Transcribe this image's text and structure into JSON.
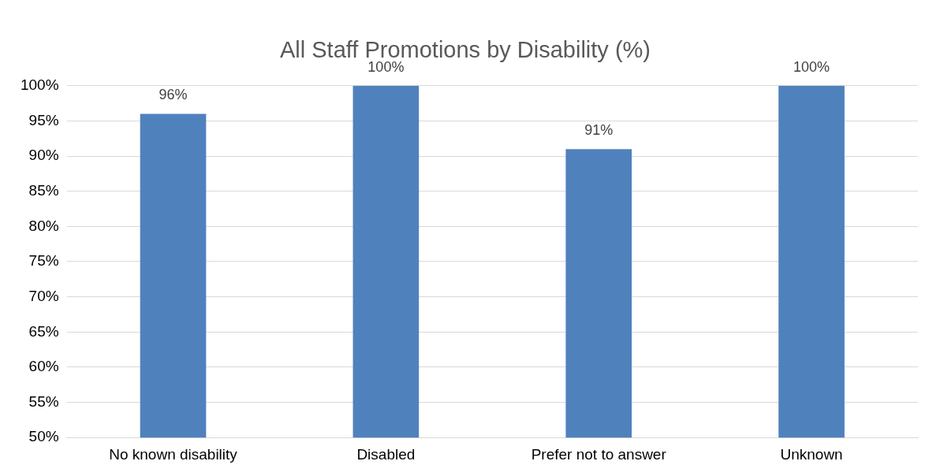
{
  "chart_data": {
    "type": "bar",
    "title": "All Staff Promotions by Disability (%)",
    "categories": [
      "No known disability",
      "Disabled",
      "Prefer not to answer",
      "Unknown"
    ],
    "values": [
      96,
      100,
      91,
      100
    ],
    "color": "#4f81bd",
    "value_labels": [
      "96%",
      "100%",
      "91%",
      "100%"
    ],
    "ylim": [
      50,
      100
    ],
    "yticks": [
      {
        "value": 50,
        "label": "50%"
      },
      {
        "value": 55,
        "label": "55%"
      },
      {
        "value": 60,
        "label": "60%"
      },
      {
        "value": 65,
        "label": "65%"
      },
      {
        "value": 70,
        "label": "70%"
      },
      {
        "value": 75,
        "label": "75%"
      },
      {
        "value": 80,
        "label": "80%"
      },
      {
        "value": 85,
        "label": "85%"
      },
      {
        "value": 90,
        "label": "90%"
      },
      {
        "value": 95,
        "label": "95%"
      },
      {
        "value": 100,
        "label": "100%"
      }
    ],
    "grid": "y",
    "legend": false
  }
}
